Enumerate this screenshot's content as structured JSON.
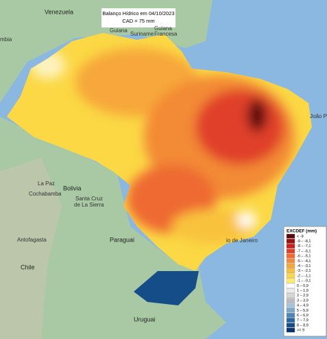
{
  "header": {
    "title": "Balanço Hídrico em 04/10/2023",
    "subtitle": "CAD = 75 mm"
  },
  "labels": [
    "Venezuela",
    "Guiana",
    "Suriname",
    "Guiana",
    "Francesa",
    "mbia",
    "Bolivia",
    "La Paz",
    "Cochabamba",
    "Santa Cruz",
    "de La Sierra",
    "Paraguai",
    "Chile",
    "Antofagasta",
    "Uruguai",
    "io de Janeiro",
    "João Pe"
  ],
  "legend": {
    "title": "EXCDEF (mm)",
    "items": [
      {
        "label": "< -9",
        "color": "#5a0a0a"
      },
      {
        "label": "-9 – -8,1",
        "color": "#9b1010"
      },
      {
        "label": "-8 – -7,1",
        "color": "#c81e1e"
      },
      {
        "label": "-7 – -6,1",
        "color": "#e0402a"
      },
      {
        "label": "-6 – -5,1",
        "color": "#ee6a32"
      },
      {
        "label": "-5 – -4,1",
        "color": "#f38a36"
      },
      {
        "label": "-4 – -3,1",
        "color": "#f7a73a"
      },
      {
        "label": "-3 – -2,1",
        "color": "#f9c23c"
      },
      {
        "label": "-2 – -1,1",
        "color": "#fbd844"
      },
      {
        "label": "-1 – -0,1",
        "color": "#fdee6a"
      },
      {
        "label": "0 – 0,9",
        "color": "#ffffff"
      },
      {
        "label": "1 – 1,9",
        "color": "#ececec"
      },
      {
        "label": "2 – 2,9",
        "color": "#d6d6d6"
      },
      {
        "label": "3 – 3,9",
        "color": "#bcbcbc"
      },
      {
        "label": "4 – 4,9",
        "color": "#a6c4d8"
      },
      {
        "label": "5 – 5,9",
        "color": "#7ba7c8"
      },
      {
        "label": "6 – 6,9",
        "color": "#4f86b5"
      },
      {
        "label": "7 – 7,9",
        "color": "#2b67a0"
      },
      {
        "label": "8 – 8,9",
        "color": "#154d88"
      },
      {
        "label": ">= 9",
        "color": "#083470"
      }
    ]
  }
}
